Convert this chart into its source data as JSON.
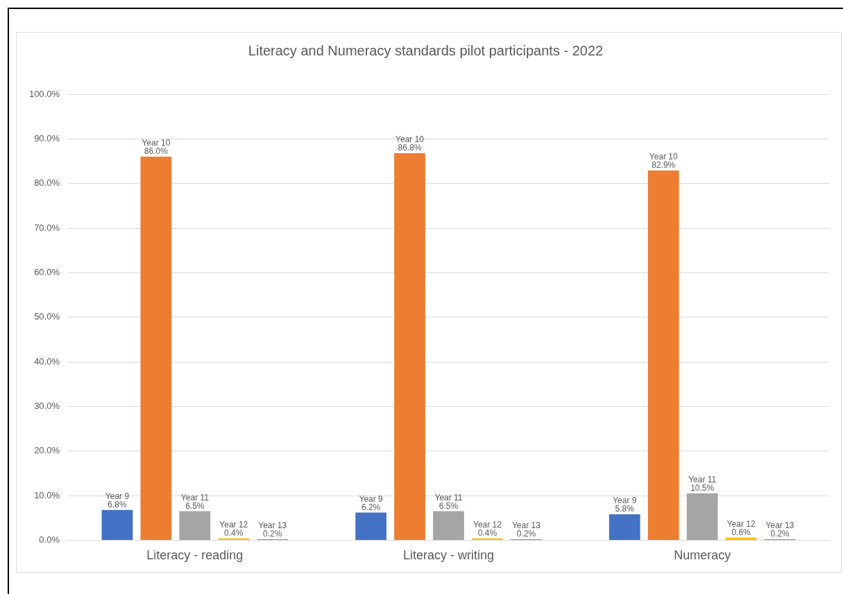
{
  "chart_data": {
    "type": "bar",
    "title": "Literacy and Numeracy standards pilot participants - 2022",
    "categories": [
      "Literacy - reading",
      "Literacy - writing",
      "Numeracy"
    ],
    "series": [
      {
        "name": "Year 9",
        "color": "#4472c4",
        "values": [
          6.8,
          6.2,
          5.8
        ],
        "value_labels": [
          "6.8%",
          "6.2%",
          "5.8%"
        ]
      },
      {
        "name": "Year 10",
        "color": "#ed7d31",
        "values": [
          86.0,
          86.8,
          82.9
        ],
        "value_labels": [
          "86.0%",
          "86.8%",
          "82.9%"
        ]
      },
      {
        "name": "Year 11",
        "color": "#a5a5a5",
        "values": [
          6.5,
          6.5,
          10.5
        ],
        "value_labels": [
          "6.5%",
          "6.5%",
          "10.5%"
        ]
      },
      {
        "name": "Year 12",
        "color": "#ffc000",
        "values": [
          0.4,
          0.4,
          0.6
        ],
        "value_labels": [
          "0.4%",
          "0.4%",
          "0.6%"
        ]
      },
      {
        "name": "Year 13",
        "color": "#5b9bd5",
        "values": [
          0.2,
          0.2,
          0.2
        ],
        "value_labels": [
          "0.2%",
          "0.2%",
          "0.2%"
        ]
      }
    ],
    "ylim": [
      0,
      100
    ],
    "yticks": [
      {
        "value": 0,
        "label": "0.0%"
      },
      {
        "value": 10,
        "label": "10.0%"
      },
      {
        "value": 20,
        "label": "20.0%"
      },
      {
        "value": 30,
        "label": "30.0%"
      },
      {
        "value": 40,
        "label": "40.0%"
      },
      {
        "value": 50,
        "label": "50.0%"
      },
      {
        "value": 60,
        "label": "60.0%"
      },
      {
        "value": 70,
        "label": "70.0%"
      },
      {
        "value": 80,
        "label": "80.0%"
      },
      {
        "value": 90,
        "label": "90.0%"
      },
      {
        "value": 100,
        "label": "100.0%"
      }
    ],
    "grid": "y"
  }
}
